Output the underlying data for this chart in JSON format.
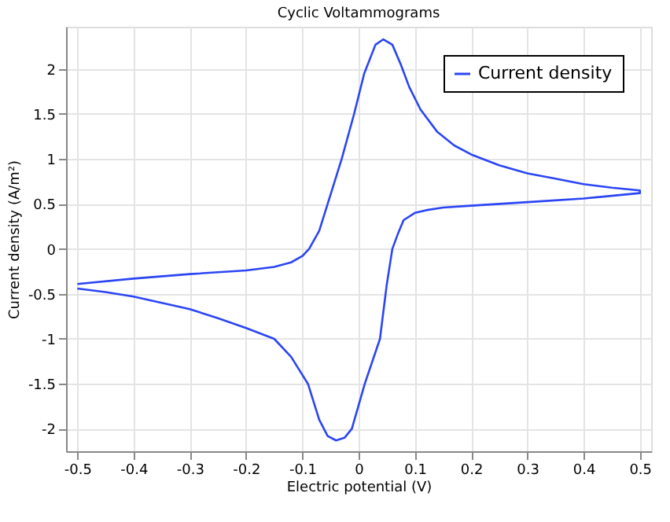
{
  "chart_data": {
    "type": "line",
    "title": "Cyclic Voltammograms",
    "xlabel": "Electric potential (V)",
    "ylabel": "Current density (A/m²)",
    "series": [
      {
        "name": "Current density",
        "color": "#2b45f5",
        "x": [
          -0.5,
          -0.4,
          -0.3,
          -0.2,
          -0.15,
          -0.12,
          -0.1,
          -0.088,
          -0.07,
          -0.055,
          -0.03,
          -0.008,
          0.01,
          0.03,
          0.044,
          0.06,
          0.075,
          0.09,
          0.11,
          0.14,
          0.17,
          0.2,
          0.25,
          0.3,
          0.35,
          0.4,
          0.45,
          0.5,
          0.5,
          0.4,
          0.3,
          0.2,
          0.15,
          0.12,
          0.1,
          0.08,
          0.07,
          0.06,
          0.05,
          0.038,
          0.011,
          -0.012,
          -0.025,
          -0.04,
          -0.055,
          -0.07,
          -0.09,
          -0.12,
          -0.15,
          -0.2,
          -0.25,
          -0.3,
          -0.35,
          -0.4,
          -0.45,
          -0.5
        ],
        "values": [
          -0.39,
          -0.33,
          -0.28,
          -0.24,
          -0.2,
          -0.15,
          -0.08,
          0,
          0.2,
          0.5,
          1.0,
          1.5,
          1.95,
          2.27,
          2.33,
          2.27,
          2.05,
          1.8,
          1.55,
          1.3,
          1.15,
          1.05,
          0.93,
          0.84,
          0.78,
          0.72,
          0.68,
          0.65,
          0.62,
          0.56,
          0.52,
          0.48,
          0.46,
          0.43,
          0.4,
          0.32,
          0.17,
          0,
          -0.4,
          -1.0,
          -1.5,
          -2.0,
          -2.1,
          -2.13,
          -2.08,
          -1.9,
          -1.5,
          -1.2,
          -1.0,
          -0.88,
          -0.77,
          -0.67,
          -0.6,
          -0.53,
          -0.48,
          -0.44
        ]
      }
    ],
    "xlim": [
      -0.52,
      0.52
    ],
    "xticks": [
      -0.5,
      -0.4,
      -0.3,
      -0.2,
      -0.1,
      0,
      0.1,
      0.2,
      0.3,
      0.4,
      0.5
    ],
    "ylim": [
      -2.25,
      2.47
    ],
    "yticks": [
      -2,
      -1.5,
      -1,
      -0.5,
      0,
      0.5,
      1,
      1.5,
      2
    ],
    "grid": true,
    "legend": "top right",
    "marker": "none",
    "line_style": "solid"
  }
}
